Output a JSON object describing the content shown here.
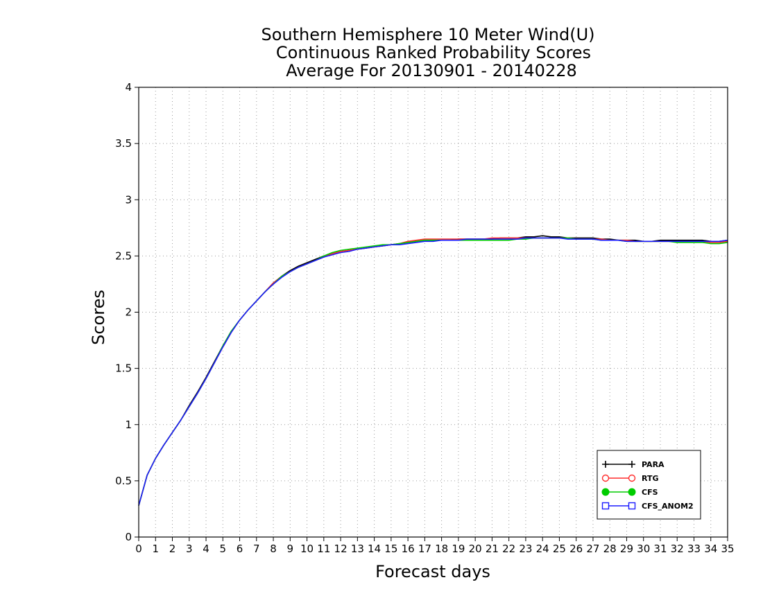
{
  "chart_data": {
    "type": "line",
    "title_lines": [
      "Southern Hemisphere 10 Meter Wind(U)",
      "Continuous Ranked Probability Scores",
      "Average For 20130901 - 20140228"
    ],
    "xlabel": "Forecast days",
    "ylabel": "Scores",
    "xlim": [
      0,
      35
    ],
    "ylim": [
      0,
      4
    ],
    "x_ticks": [
      "0",
      "1",
      "2",
      "3",
      "4",
      "5",
      "6",
      "7",
      "8",
      "9",
      "10",
      "11",
      "12",
      "13",
      "14",
      "15",
      "16",
      "17",
      "18",
      "19",
      "20",
      "21",
      "22",
      "23",
      "24",
      "25",
      "26",
      "27",
      "28",
      "29",
      "30",
      "31",
      "32",
      "33",
      "34",
      "35"
    ],
    "y_ticks": [
      "0",
      "0.5",
      "1",
      "1.5",
      "2",
      "2.5",
      "3",
      "3.5",
      "4"
    ],
    "grid": true,
    "legend_position": "bottom-right",
    "x": [
      0,
      0.5,
      1,
      1.5,
      2,
      2.5,
      3,
      3.5,
      4,
      4.5,
      5,
      5.5,
      6,
      6.5,
      7,
      7.5,
      8,
      8.5,
      9,
      9.5,
      10,
      10.5,
      11,
      11.5,
      12,
      12.5,
      13,
      13.5,
      14,
      14.5,
      15,
      15.5,
      16,
      16.5,
      17,
      17.5,
      18,
      18.5,
      19,
      19.5,
      20,
      20.5,
      21,
      21.5,
      22,
      22.5,
      23,
      23.5,
      24,
      24.5,
      25,
      25.5,
      26,
      26.5,
      27,
      27.5,
      28,
      28.5,
      29,
      29.5,
      30,
      30.5,
      31,
      31.5,
      32,
      32.5,
      33,
      33.5,
      34,
      34.5,
      35
    ],
    "series": [
      {
        "name": "PARA",
        "color": "#000000",
        "marker": "plus",
        "values": [
          0.28,
          0.55,
          0.7,
          0.82,
          0.93,
          1.04,
          1.17,
          1.29,
          1.42,
          1.56,
          1.7,
          1.83,
          1.93,
          2.02,
          2.1,
          2.18,
          2.26,
          2.32,
          2.37,
          2.41,
          2.44,
          2.47,
          2.5,
          2.52,
          2.54,
          2.55,
          2.56,
          2.57,
          2.58,
          2.59,
          2.6,
          2.61,
          2.62,
          2.63,
          2.64,
          2.64,
          2.64,
          2.64,
          2.65,
          2.65,
          2.65,
          2.65,
          2.65,
          2.66,
          2.66,
          2.66,
          2.67,
          2.67,
          2.68,
          2.67,
          2.67,
          2.66,
          2.66,
          2.66,
          2.66,
          2.65,
          2.65,
          2.64,
          2.64,
          2.64,
          2.63,
          2.63,
          2.64,
          2.64,
          2.64,
          2.64,
          2.64,
          2.64,
          2.63,
          2.63,
          2.64
        ]
      },
      {
        "name": "RTG",
        "color": "#ff2a2a",
        "marker": "circle-open",
        "values": [
          0.28,
          0.55,
          0.7,
          0.82,
          0.93,
          1.04,
          1.16,
          1.28,
          1.41,
          1.55,
          1.69,
          1.82,
          1.93,
          2.02,
          2.1,
          2.18,
          2.26,
          2.32,
          2.36,
          2.4,
          2.43,
          2.46,
          2.49,
          2.52,
          2.54,
          2.55,
          2.56,
          2.57,
          2.58,
          2.59,
          2.6,
          2.61,
          2.63,
          2.64,
          2.65,
          2.65,
          2.65,
          2.65,
          2.65,
          2.65,
          2.65,
          2.65,
          2.66,
          2.66,
          2.66,
          2.66,
          2.66,
          2.66,
          2.66,
          2.66,
          2.66,
          2.66,
          2.65,
          2.65,
          2.65,
          2.65,
          2.64,
          2.64,
          2.64,
          2.63,
          2.63,
          2.63,
          2.63,
          2.63,
          2.63,
          2.63,
          2.63,
          2.63,
          2.62,
          2.62,
          2.63
        ]
      },
      {
        "name": "CFS",
        "color": "#00cc00",
        "marker": "circle-filled",
        "values": [
          0.28,
          0.55,
          0.7,
          0.82,
          0.93,
          1.04,
          1.16,
          1.28,
          1.41,
          1.55,
          1.7,
          1.83,
          1.93,
          2.02,
          2.1,
          2.18,
          2.25,
          2.32,
          2.36,
          2.4,
          2.43,
          2.46,
          2.5,
          2.53,
          2.55,
          2.56,
          2.57,
          2.58,
          2.59,
          2.6,
          2.6,
          2.61,
          2.62,
          2.63,
          2.64,
          2.64,
          2.64,
          2.64,
          2.64,
          2.64,
          2.64,
          2.64,
          2.64,
          2.64,
          2.64,
          2.65,
          2.65,
          2.66,
          2.66,
          2.66,
          2.66,
          2.66,
          2.65,
          2.65,
          2.65,
          2.64,
          2.64,
          2.64,
          2.63,
          2.63,
          2.63,
          2.63,
          2.63,
          2.63,
          2.62,
          2.62,
          2.62,
          2.62,
          2.61,
          2.61,
          2.62
        ]
      },
      {
        "name": "CFS_ANOM2",
        "color": "#1a1aff",
        "marker": "square-open",
        "values": [
          0.28,
          0.55,
          0.7,
          0.82,
          0.93,
          1.04,
          1.16,
          1.28,
          1.41,
          1.55,
          1.69,
          1.82,
          1.93,
          2.02,
          2.1,
          2.18,
          2.25,
          2.31,
          2.36,
          2.4,
          2.43,
          2.46,
          2.49,
          2.51,
          2.53,
          2.54,
          2.56,
          2.57,
          2.58,
          2.59,
          2.6,
          2.6,
          2.61,
          2.62,
          2.63,
          2.63,
          2.64,
          2.64,
          2.64,
          2.65,
          2.65,
          2.65,
          2.65,
          2.65,
          2.65,
          2.65,
          2.66,
          2.66,
          2.66,
          2.66,
          2.66,
          2.65,
          2.65,
          2.65,
          2.65,
          2.64,
          2.64,
          2.64,
          2.63,
          2.63,
          2.63,
          2.63,
          2.63,
          2.63,
          2.63,
          2.63,
          2.63,
          2.63,
          2.63,
          2.63,
          2.64
        ]
      }
    ]
  }
}
